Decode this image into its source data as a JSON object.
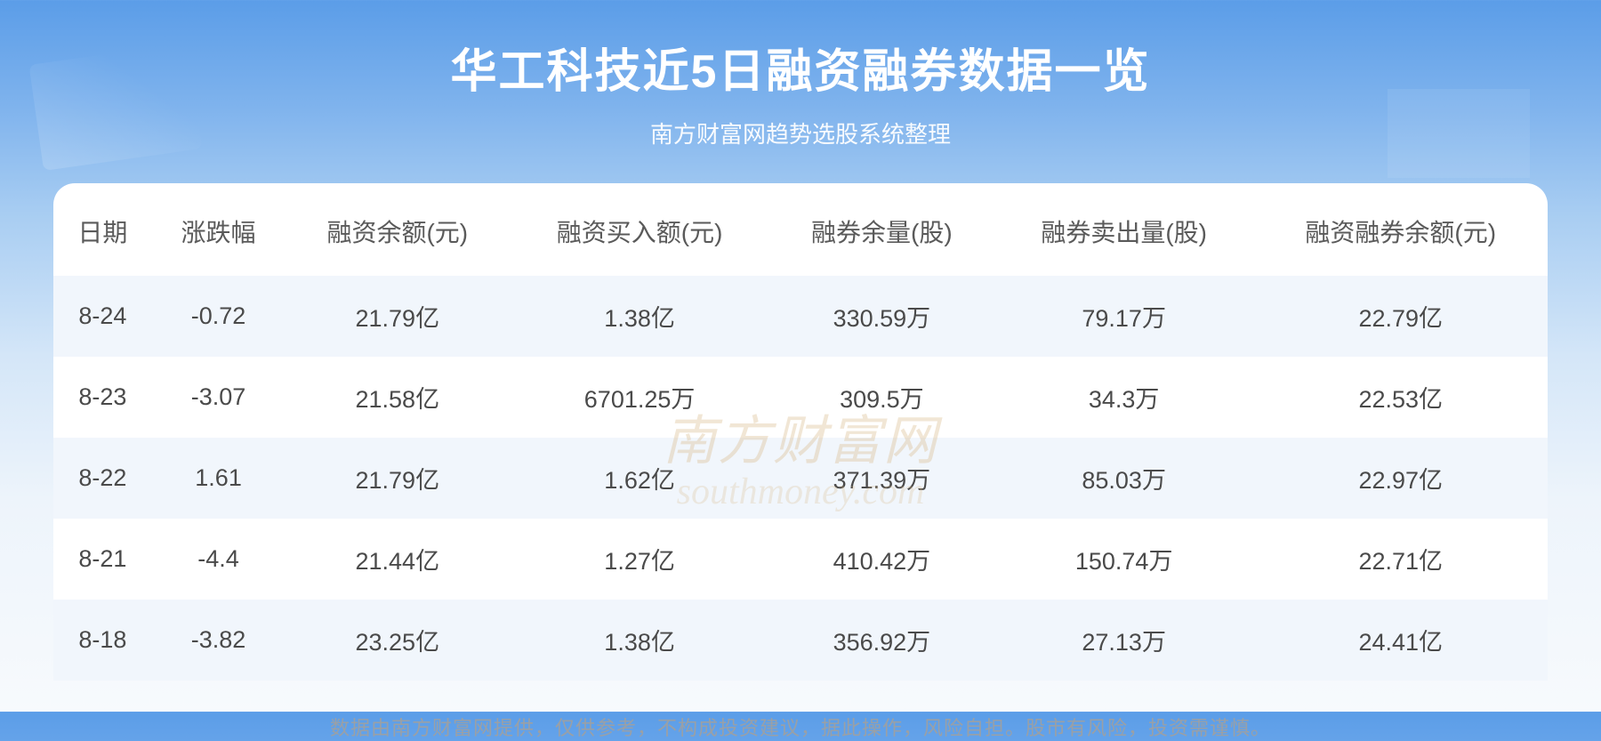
{
  "header": {
    "title": "华工科技近5日融资融券数据一览",
    "subtitle": "南方财富网趋势选股系统整理",
    "title_color": "#ffffff",
    "title_fontsize": 52,
    "subtitle_fontsize": 26
  },
  "background": {
    "gradient_top": "#5b9de8",
    "gradient_mid": "#a8cdf2",
    "gradient_bottom": "#f7fafd"
  },
  "table": {
    "type": "table",
    "header_color": "#5a5a5a",
    "cell_color": "#4a4a4a",
    "row_odd_bg": "#f1f6fc",
    "row_even_bg": "#ffffff",
    "header_fontsize": 28,
    "cell_fontsize": 27,
    "columns": [
      "日期",
      "涨跌幅",
      "融资余额(元)",
      "融资买入额(元)",
      "融券余量(股)",
      "融券卖出量(股)",
      "融资融券余额(元)"
    ],
    "rows": [
      [
        "8-24",
        "-0.72",
        "21.79亿",
        "1.38亿",
        "330.59万",
        "79.17万",
        "22.79亿"
      ],
      [
        "8-23",
        "-3.07",
        "21.58亿",
        "6701.25万",
        "309.5万",
        "34.3万",
        "22.53亿"
      ],
      [
        "8-22",
        "1.61",
        "21.79亿",
        "1.62亿",
        "371.39万",
        "85.03万",
        "22.97亿"
      ],
      [
        "8-21",
        "-4.4",
        "21.44亿",
        "1.27亿",
        "410.42万",
        "150.74万",
        "22.71亿"
      ],
      [
        "8-18",
        "-3.82",
        "23.25亿",
        "1.38亿",
        "356.92万",
        "27.13万",
        "24.41亿"
      ]
    ]
  },
  "watermark": {
    "main": "南方财富网",
    "sub": "southmoney.com",
    "color": "#d9b988",
    "opacity": 0.35
  },
  "disclaimer": {
    "text": "数据由南方财富网提供，仅供参考，不构成投资建议，据此操作，风险自担。股市有风险，投资需谨慎。",
    "color": "#9aa0a6",
    "fontsize": 22
  }
}
